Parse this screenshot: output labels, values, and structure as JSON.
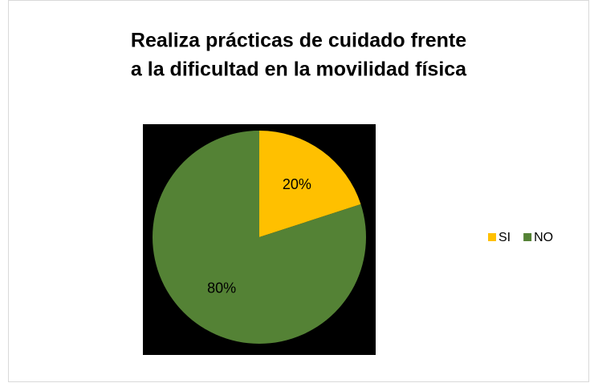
{
  "chart_data": {
    "type": "pie",
    "title": [
      "Realiza prácticas  de cuidado  frente",
      "a la dificultad en la movilidad física"
    ],
    "categories": [
      "SI",
      "NO"
    ],
    "values": [
      20,
      80
    ],
    "value_labels": [
      "20%",
      "80%"
    ],
    "colors": [
      "#ffc000",
      "#548235"
    ],
    "legend": "right"
  }
}
